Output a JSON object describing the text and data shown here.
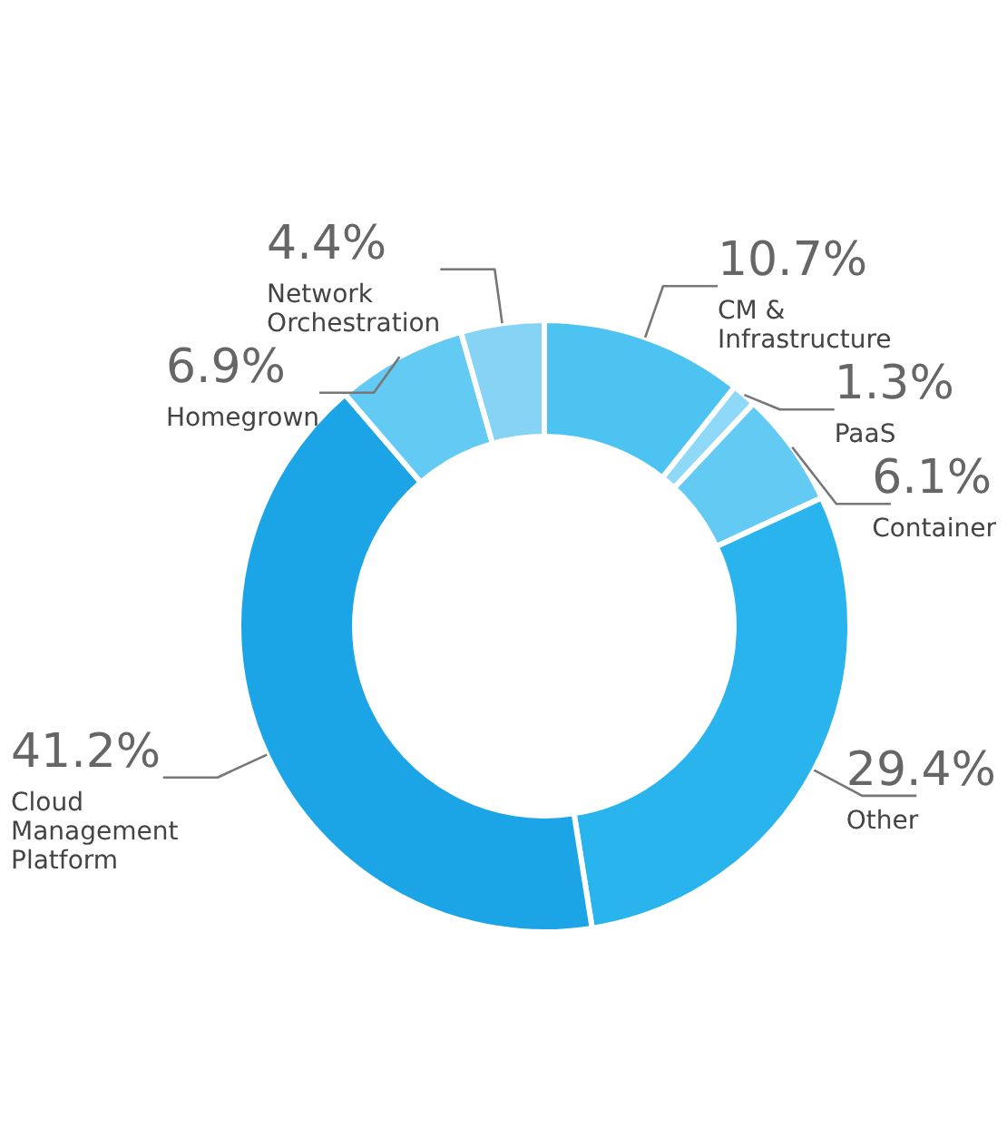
{
  "chart_data": {
    "type": "donut",
    "categories": [
      "CM & Infrastructure",
      "PaaS",
      "Container",
      "Other",
      "Cloud Management Platform",
      "Homegrown",
      "Network Orchestration"
    ],
    "values": [
      10.7,
      1.3,
      6.1,
      29.4,
      41.2,
      6.9,
      4.4
    ],
    "value_labels": [
      "10.7%",
      "1.3%",
      "6.1%",
      "29.4%",
      "41.2%",
      "6.9%",
      "4.4%"
    ],
    "colors": [
      "#4cc3f1",
      "#8ed8f8",
      "#63cbf3",
      "#2ab4ee",
      "#1ba4e6",
      "#63cbf3",
      "#86d3f5"
    ],
    "legend": false
  }
}
